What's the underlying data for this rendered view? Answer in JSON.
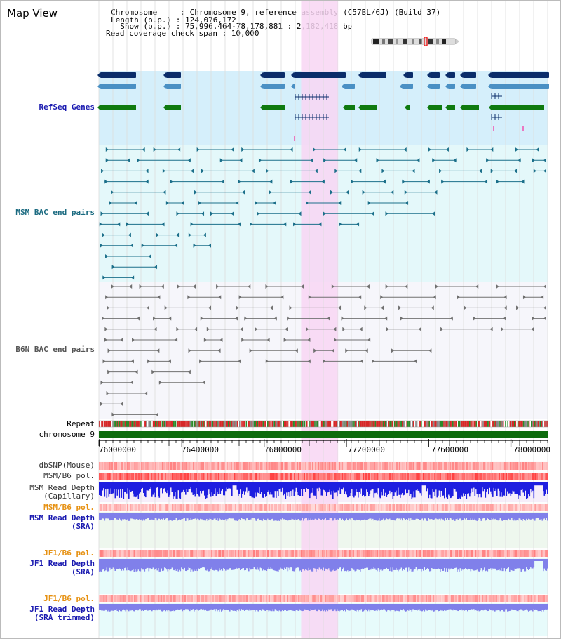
{
  "header": {
    "title": "Map View",
    "lines": [
      "Chromosome     : Chromosome 9, reference assembly (C57BL/6J) (Build 37)",
      "Length (b.p.) : 124,076,172",
      "  Show (b.p.) : 75,996,464-78,178,881 : 2,182,418 bp",
      "Read coverage check span : 10,000"
    ]
  },
  "tracks": {
    "refseq": "RefSeq Genes",
    "msm_bac": "MSM BAC end pairs",
    "b6n_bac": "B6N BAC end pairs",
    "repeat": "Repeat",
    "chromosome": "chromosome 9",
    "dbsnp": "dbSNP(Mouse)",
    "msm_b6_pol_1": "MSM/B6 pol.",
    "msm_depth_cap_1": "MSM Read Depth",
    "msm_depth_cap_2": "(Capillary)",
    "msm_b6_pol_2": "MSM/B6 pol.",
    "msm_depth_sra_1": "MSM Read Depth",
    "msm_depth_sra_2": "(SRA)",
    "jf1_b6_pol_1": "JF1/B6 pol.",
    "jf1_depth_1": "JF1 Read Depth",
    "jf1_depth_2": "(SRA)",
    "jf1_b6_pol_2": "JF1/B6 pol.",
    "jf1_trim_1": "JF1 Read Depth",
    "jf1_trim_2": "(SRA trimmed)"
  },
  "axis": {
    "ticks": [
      76000000,
      76400000,
      76800000,
      77200000,
      77600000,
      78000000
    ],
    "start": 75996464,
    "end": 78178881
  },
  "highlight": {
    "start": 76980000,
    "end": 77160000
  },
  "colors": {
    "highlight": "#f8d6f3",
    "refseq_bg": "#d5effb",
    "msm_bg": "#e4f8fa",
    "b6n_bg": "#f6f6fb",
    "dark_blue": "#0b2d6a",
    "mid_blue": "#4a90c4",
    "green": "#0f7a0f",
    "teal": "#1b6f8a",
    "gray": "#707070",
    "depth_blue": "#1e1ee0",
    "depth_violet": "#8080ea",
    "pol_red": "#f08888",
    "chrom_green": "#0d6b0d",
    "label_blue": "#1a1ab0",
    "label_teal": "#1a6a80",
    "label_orange": "#e69112",
    "label_gray": "#555555"
  }
}
